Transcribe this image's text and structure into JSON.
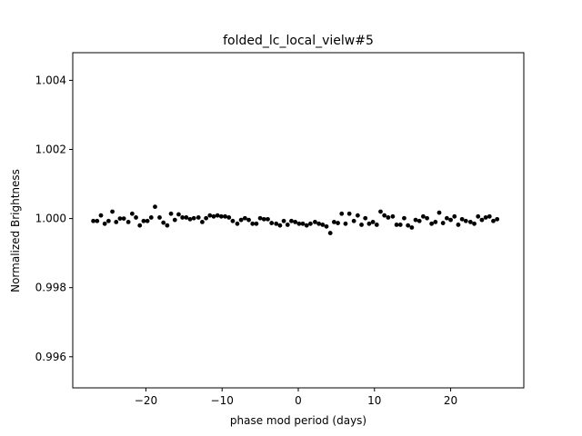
{
  "chart_data": {
    "type": "scatter",
    "title": "folded_lc_local_vielw#5",
    "xlabel": "phase mod period (days)",
    "ylabel": "Normalized Brightness",
    "xlim": [
      -29.6,
      29.6
    ],
    "ylim": [
      0.9951,
      1.0048
    ],
    "x_ticks": [
      -20,
      -10,
      0,
      10,
      20
    ],
    "x_tick_labels": [
      "−20",
      "−10",
      "0",
      "10",
      "20"
    ],
    "y_ticks": [
      0.996,
      0.998,
      1.0,
      1.002,
      1.004
    ],
    "y_tick_labels": [
      "0.996",
      "0.998",
      "1.000",
      "1.002",
      "1.004"
    ],
    "grid": false,
    "legend": "none",
    "marker_color": "#000000",
    "points": [
      {
        "x": -26.9,
        "y": 0.99993
      },
      {
        "x": -26.4,
        "y": 0.99993
      },
      {
        "x": -25.9,
        "y": 1.00009
      },
      {
        "x": -25.4,
        "y": 0.99985
      },
      {
        "x": -24.9,
        "y": 0.99993
      },
      {
        "x": -24.4,
        "y": 1.0002
      },
      {
        "x": -23.9,
        "y": 0.9999
      },
      {
        "x": -23.4,
        "y": 1.0
      },
      {
        "x": -22.9,
        "y": 1.0
      },
      {
        "x": -22.3,
        "y": 0.9999
      },
      {
        "x": -21.8,
        "y": 1.00014
      },
      {
        "x": -21.3,
        "y": 1.00003
      },
      {
        "x": -20.8,
        "y": 0.9998
      },
      {
        "x": -20.3,
        "y": 0.99993
      },
      {
        "x": -19.8,
        "y": 0.99993
      },
      {
        "x": -19.3,
        "y": 1.00003
      },
      {
        "x": -18.8,
        "y": 1.00034
      },
      {
        "x": -18.2,
        "y": 1.00003
      },
      {
        "x": -17.7,
        "y": 0.99988
      },
      {
        "x": -17.2,
        "y": 0.9998
      },
      {
        "x": -16.7,
        "y": 1.00014
      },
      {
        "x": -16.2,
        "y": 0.99996
      },
      {
        "x": -15.7,
        "y": 1.00012
      },
      {
        "x": -15.2,
        "y": 1.00003
      },
      {
        "x": -14.7,
        "y": 1.00003
      },
      {
        "x": -14.2,
        "y": 0.99998
      },
      {
        "x": -13.7,
        "y": 1.00001
      },
      {
        "x": -13.1,
        "y": 1.00003
      },
      {
        "x": -12.6,
        "y": 0.9999
      },
      {
        "x": -12.1,
        "y": 1.00001
      },
      {
        "x": -11.6,
        "y": 1.00009
      },
      {
        "x": -11.1,
        "y": 1.00006
      },
      {
        "x": -10.6,
        "y": 1.00009
      },
      {
        "x": -10.1,
        "y": 1.00006
      },
      {
        "x": -9.6,
        "y": 1.00006
      },
      {
        "x": -9.1,
        "y": 1.00003
      },
      {
        "x": -8.6,
        "y": 0.99993
      },
      {
        "x": -8.0,
        "y": 0.99985
      },
      {
        "x": -7.5,
        "y": 0.99996
      },
      {
        "x": -7.0,
        "y": 1.00001
      },
      {
        "x": -6.5,
        "y": 0.99996
      },
      {
        "x": -6.0,
        "y": 0.99985
      },
      {
        "x": -5.5,
        "y": 0.99985
      },
      {
        "x": -5.0,
        "y": 1.00001
      },
      {
        "x": -4.5,
        "y": 0.99998
      },
      {
        "x": -4.0,
        "y": 0.99998
      },
      {
        "x": -3.5,
        "y": 0.99987
      },
      {
        "x": -2.9,
        "y": 0.99985
      },
      {
        "x": -2.4,
        "y": 0.9998
      },
      {
        "x": -1.9,
        "y": 0.99993
      },
      {
        "x": -1.4,
        "y": 0.99982
      },
      {
        "x": -0.9,
        "y": 0.99993
      },
      {
        "x": -0.4,
        "y": 0.9999
      },
      {
        "x": 0.1,
        "y": 0.99985
      },
      {
        "x": 0.6,
        "y": 0.99985
      },
      {
        "x": 1.1,
        "y": 0.9998
      },
      {
        "x": 1.6,
        "y": 0.99985
      },
      {
        "x": 2.2,
        "y": 0.9999
      },
      {
        "x": 2.7,
        "y": 0.99985
      },
      {
        "x": 3.2,
        "y": 0.99982
      },
      {
        "x": 3.7,
        "y": 0.99977
      },
      {
        "x": 4.2,
        "y": 0.99958
      },
      {
        "x": 4.7,
        "y": 0.9999
      },
      {
        "x": 5.2,
        "y": 0.99987
      },
      {
        "x": 5.7,
        "y": 1.00014
      },
      {
        "x": 6.2,
        "y": 0.99985
      },
      {
        "x": 6.7,
        "y": 1.00014
      },
      {
        "x": 7.3,
        "y": 0.99993
      },
      {
        "x": 7.8,
        "y": 1.00009
      },
      {
        "x": 8.3,
        "y": 0.99982
      },
      {
        "x": 8.8,
        "y": 1.00001
      },
      {
        "x": 9.3,
        "y": 0.99985
      },
      {
        "x": 9.8,
        "y": 0.9999
      },
      {
        "x": 10.3,
        "y": 0.99982
      },
      {
        "x": 10.8,
        "y": 1.0002
      },
      {
        "x": 11.3,
        "y": 1.00009
      },
      {
        "x": 11.8,
        "y": 1.00003
      },
      {
        "x": 12.4,
        "y": 1.00006
      },
      {
        "x": 12.9,
        "y": 0.99982
      },
      {
        "x": 13.4,
        "y": 0.99982
      },
      {
        "x": 13.9,
        "y": 1.00001
      },
      {
        "x": 14.4,
        "y": 0.9998
      },
      {
        "x": 14.9,
        "y": 0.99974
      },
      {
        "x": 15.4,
        "y": 0.99996
      },
      {
        "x": 15.9,
        "y": 0.99993
      },
      {
        "x": 16.4,
        "y": 1.00006
      },
      {
        "x": 16.9,
        "y": 1.00001
      },
      {
        "x": 17.5,
        "y": 0.99985
      },
      {
        "x": 18.0,
        "y": 0.9999
      },
      {
        "x": 18.5,
        "y": 1.00017
      },
      {
        "x": 19.0,
        "y": 0.99987
      },
      {
        "x": 19.5,
        "y": 1.00001
      },
      {
        "x": 20.0,
        "y": 0.99996
      },
      {
        "x": 20.5,
        "y": 1.00006
      },
      {
        "x": 21.0,
        "y": 0.99982
      },
      {
        "x": 21.5,
        "y": 0.99998
      },
      {
        "x": 22.0,
        "y": 0.99993
      },
      {
        "x": 22.6,
        "y": 0.9999
      },
      {
        "x": 23.1,
        "y": 0.99985
      },
      {
        "x": 23.6,
        "y": 1.00006
      },
      {
        "x": 24.1,
        "y": 0.99996
      },
      {
        "x": 24.6,
        "y": 1.00003
      },
      {
        "x": 25.1,
        "y": 1.00006
      },
      {
        "x": 25.6,
        "y": 0.99993
      },
      {
        "x": 26.1,
        "y": 0.99998
      }
    ]
  }
}
